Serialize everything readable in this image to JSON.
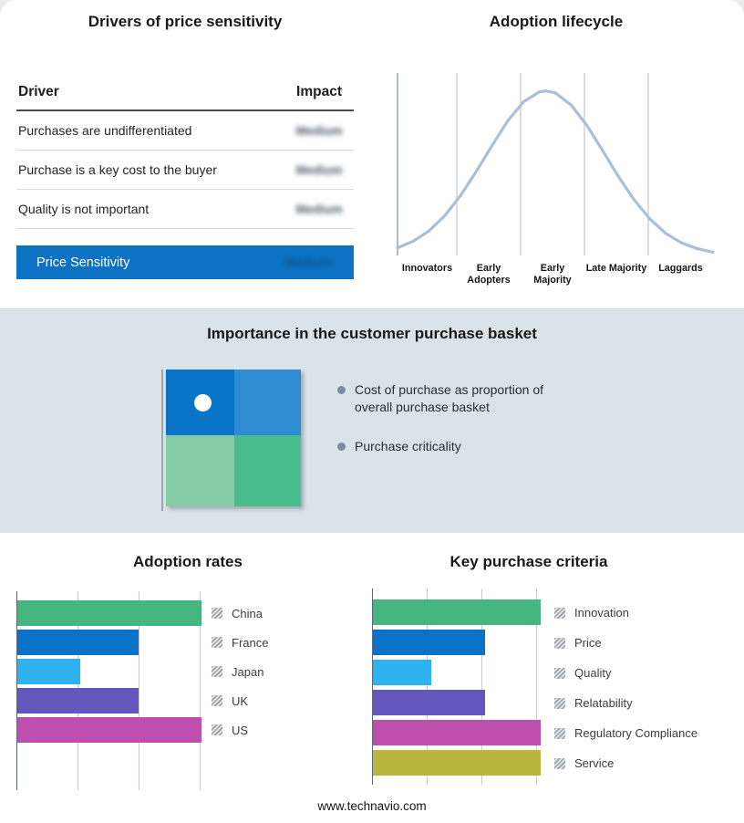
{
  "page": {
    "footer_url": "www.technavio.com",
    "background_color": "#e9edf0",
    "band_color": "#dbe3ea"
  },
  "drivers_panel": {
    "title": "Drivers of price sensitivity",
    "columns": [
      "Driver",
      "Impact"
    ],
    "rows": [
      {
        "driver": "Purchases are undifferentiated",
        "impact": "Medium",
        "impact_blurred": true
      },
      {
        "driver": "Purchase is a key cost to the buyer",
        "impact": "Medium",
        "impact_blurred": true
      },
      {
        "driver": "Quality is not important",
        "impact": "Medium",
        "impact_blurred": true
      }
    ],
    "highlight_row": {
      "driver": "Price Sensitivity",
      "impact": "Medium",
      "impact_blurred": true,
      "background": "#0d72c4"
    }
  },
  "basket_panel": {
    "title": "Importance in the customer purchase basket",
    "bullets": [
      "Cost of purchase as proportion of overall purchase basket",
      "Purchase criticality"
    ],
    "quadrant_colors": {
      "top_left": "#0a74c9",
      "top_right": "#2f8bd2",
      "bottom_left": "#85cba8",
      "bottom_right": "#4abd8c"
    },
    "marker": "white-dot-in-top-left-quadrant"
  },
  "icons": {
    "legend_swatch": "hatched-square",
    "bullet": "filled-circle",
    "quadrant_marker": "white-dot"
  },
  "chart_data": [
    {
      "id": "adoption_lifecycle",
      "type": "line",
      "title": "Adoption lifecycle",
      "categories": [
        "Innovators",
        "Early Adopters",
        "Early Majority",
        "Late Majority",
        "Laggards"
      ],
      "y_axis": "adoption (unlabeled)",
      "description": "Bell-shaped technology adoption curve peaking over the Early Majority stage",
      "curve_color": "#aabfd8",
      "curve_points_pct": [
        [
          0,
          95.7
        ],
        [
          5,
          92
        ],
        [
          10,
          86.2
        ],
        [
          15,
          77.7
        ],
        [
          20,
          66.5
        ],
        [
          25,
          52.9
        ],
        [
          30,
          38.4
        ],
        [
          35,
          24.6
        ],
        [
          40,
          14
        ],
        [
          45,
          8.5
        ],
        [
          47,
          8
        ],
        [
          50,
          9.1
        ],
        [
          55,
          15.8
        ],
        [
          60,
          27.2
        ],
        [
          65,
          41.3
        ],
        [
          70,
          55.8
        ],
        [
          75,
          68.9
        ],
        [
          80,
          79.6
        ],
        [
          85,
          87.6
        ],
        [
          90,
          92.9
        ],
        [
          95,
          96.2
        ],
        [
          100,
          98.1
        ]
      ]
    },
    {
      "id": "adoption_rates",
      "type": "bar",
      "orientation": "horizontal",
      "title": "Adoption rates",
      "categories": [
        "China",
        "France",
        "Japan",
        "UK",
        "US"
      ],
      "values_pct_of_max": [
        100,
        66,
        34,
        66,
        100
      ],
      "colors": [
        "#45b680",
        "#0a72c8",
        "#2fb3ef",
        "#6456ba",
        "#bf4fae"
      ],
      "x_axis": {
        "tick_labels": false,
        "gridlines": 4
      },
      "note": "axis unlabeled; values estimated relative to longest bar"
    },
    {
      "id": "key_purchase_criteria",
      "type": "bar",
      "orientation": "horizontal",
      "title": "Key purchase criteria",
      "categories": [
        "Innovation",
        "Price",
        "Quality",
        "Relatability",
        "Regulatory Compliance",
        "Service"
      ],
      "values_pct_of_max": [
        100,
        67,
        35,
        67,
        100,
        100
      ],
      "colors": [
        "#45b680",
        "#0a72c8",
        "#2fb3ef",
        "#6456ba",
        "#bf4fae",
        "#b9b53e"
      ],
      "x_axis": {
        "tick_labels": false,
        "gridlines": 4
      },
      "note": "axis unlabeled; values estimated relative to longest bar"
    }
  ]
}
